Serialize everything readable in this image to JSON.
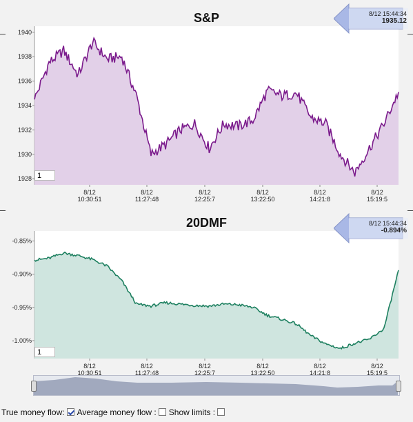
{
  "sp_chart": {
    "title": "S&P",
    "callout_time": "8/12 15:44:34",
    "callout_value": "1935.12",
    "count_value": "1",
    "line_color": "#7b1b8c",
    "fill_color": "#e2d0e8",
    "y_ticks": [
      "1940",
      "1938",
      "1936",
      "1934",
      "1932",
      "1930",
      "1928"
    ],
    "x_dates": [
      "8/12",
      "8/12",
      "8/12",
      "8/12",
      "8/12",
      "8/12"
    ],
    "x_times": [
      "10:30:51",
      "11:27:48",
      "12:25:7",
      "13:22:50",
      "14:21:8",
      "15:19:5"
    ]
  },
  "mf_chart": {
    "title": "20DMF",
    "callout_time": "8/12 15:44:34",
    "callout_value": "-0.894%",
    "count_value": "1",
    "line_color": "#1e8060",
    "fill_color": "#cfe5df",
    "y_ticks": [
      "-0.85%",
      "-0.90%",
      "-0.95%",
      "-1.00%"
    ],
    "x_dates": [
      "8/12",
      "8/12",
      "8/12",
      "8/12",
      "8/12",
      "8/12"
    ],
    "x_times": [
      "10:30:51",
      "11:27:48",
      "12:25:7",
      "13:22:50",
      "14:21:8",
      "15:19:5"
    ]
  },
  "chart_data": [
    {
      "type": "area",
      "title": "S&P",
      "ylim": [
        1927.5,
        1940.5
      ],
      "x": [
        "9:30",
        "9:45",
        "10:00",
        "10:15",
        "10:30",
        "10:45",
        "11:00",
        "11:15",
        "11:30",
        "11:45",
        "12:00",
        "12:15",
        "12:30",
        "12:45",
        "13:00",
        "13:15",
        "13:30",
        "13:45",
        "14:00",
        "14:15",
        "14:30",
        "14:45",
        "15:00",
        "15:15",
        "15:30",
        "15:44"
      ],
      "values": [
        1934.5,
        1937.5,
        1938.5,
        1936.5,
        1939.2,
        1937.8,
        1938.0,
        1934.8,
        1930.0,
        1930.8,
        1932.0,
        1932.5,
        1930.5,
        1932.5,
        1932.3,
        1932.8,
        1935.2,
        1934.8,
        1935.0,
        1933.0,
        1932.5,
        1930.0,
        1928.5,
        1930.5,
        1932.5,
        1935.1
      ],
      "grid": false
    },
    {
      "type": "area",
      "title": "20DMF",
      "ylim": [
        -1.027,
        -0.835
      ],
      "x": [
        "9:30",
        "9:45",
        "10:00",
        "10:15",
        "10:30",
        "10:45",
        "11:00",
        "11:15",
        "11:30",
        "11:45",
        "12:00",
        "12:15",
        "12:30",
        "12:45",
        "13:00",
        "13:15",
        "13:30",
        "13:45",
        "14:00",
        "14:15",
        "14:30",
        "14:45",
        "15:00",
        "15:15",
        "15:30",
        "15:44"
      ],
      "values": [
        -0.879,
        -0.876,
        -0.868,
        -0.872,
        -0.878,
        -0.888,
        -0.91,
        -0.945,
        -0.948,
        -0.943,
        -0.945,
        -0.947,
        -0.948,
        -0.945,
        -0.946,
        -0.95,
        -0.962,
        -0.968,
        -0.975,
        -0.993,
        -1.005,
        -1.012,
        -1.004,
        -0.998,
        -0.982,
        -0.894
      ],
      "grid": false
    }
  ],
  "footer": {
    "true_money_flow": "True money flow:",
    "average_money_flow": "Average money flow :",
    "show_limits": "Show limits :"
  }
}
